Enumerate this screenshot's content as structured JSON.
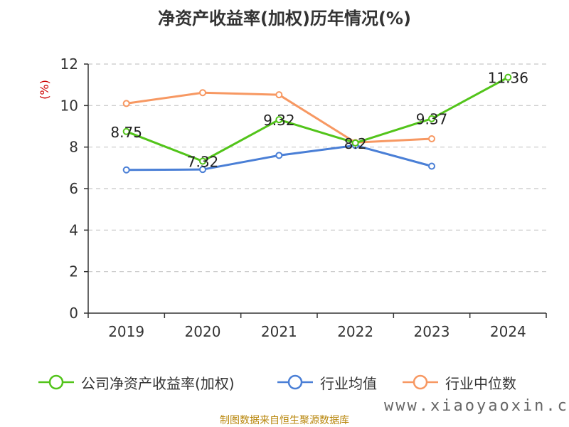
{
  "chart_data": {
    "type": "line",
    "title": "净资产收益率(加权)历年情况(%)",
    "ylabel": "(%)",
    "xlabel": "",
    "categories": [
      "2019",
      "2020",
      "2021",
      "2022",
      "2023",
      "2024"
    ],
    "ylim": [
      0,
      12
    ],
    "yticks": [
      0,
      2,
      4,
      6,
      8,
      10,
      12
    ],
    "grid": true,
    "legend": "bottom",
    "series": [
      {
        "name": "公司净资产收益率(加权)",
        "color": "#52c41a",
        "values": [
          8.75,
          7.32,
          9.32,
          8.2,
          9.37,
          11.36
        ],
        "labels": [
          "8.75",
          "7.32",
          "9.32",
          "8.2",
          "9.37",
          "11.36"
        ]
      },
      {
        "name": "行业均值",
        "color": "#4a7fd6",
        "values": [
          6.9,
          6.92,
          7.6,
          8.08,
          7.08,
          null
        ]
      },
      {
        "name": "行业中位数",
        "color": "#f79862",
        "values": [
          10.1,
          10.62,
          10.52,
          8.22,
          8.4,
          null
        ]
      }
    ]
  },
  "source": "制图数据来自恒生聚源数据库",
  "watermark": "www.xiaoyaoxin.com"
}
